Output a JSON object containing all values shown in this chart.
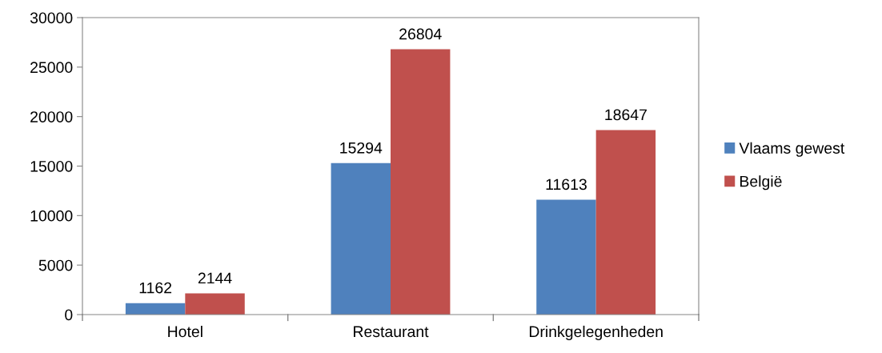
{
  "chart_data": {
    "type": "bar",
    "categories": [
      "Hotel",
      "Restaurant",
      "Drinkgelegenheden"
    ],
    "series": [
      {
        "name": "Vlaams gewest",
        "color": "#4f81bd",
        "values": [
          1162,
          15294,
          11613
        ]
      },
      {
        "name": "België",
        "color": "#c0504d",
        "values": [
          2144,
          26804,
          18647
        ]
      }
    ],
    "ylim": [
      0,
      30000
    ],
    "yticks": [
      0,
      5000,
      10000,
      15000,
      20000,
      25000,
      30000
    ],
    "grid": false,
    "legend": "right",
    "data_labels": true
  }
}
